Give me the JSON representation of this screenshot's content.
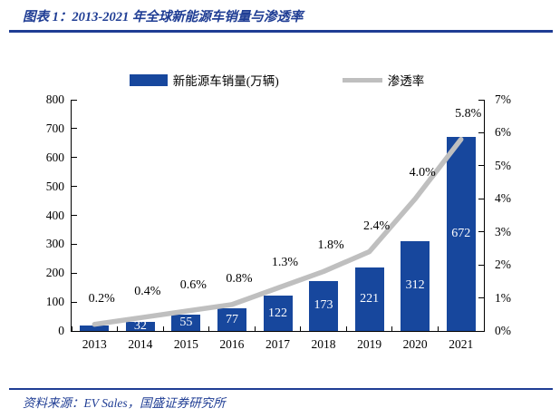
{
  "header": {
    "title": "图表 1：2013-2021 年全球新能源车销量与渗透率"
  },
  "footer": {
    "source": "资料来源：EV Sales，国盛证券研究所"
  },
  "colors": {
    "bar_blue": "#17479D",
    "line_gray": "#BFBFBF",
    "navy_accent": "#1F3D94",
    "axis_text": "#000000",
    "bar_value_text": "#FFFFFF"
  },
  "chart_data": {
    "type": "bar+line combo",
    "title": "2013-2021 年全球新能源车销量与渗透率",
    "categories": [
      "2013",
      "2014",
      "2015",
      "2016",
      "2017",
      "2018",
      "2019",
      "2020",
      "2021"
    ],
    "series": [
      {
        "name": "新能源车销量(万辆)",
        "type": "bar",
        "axis": "left",
        "values": [
          20,
          32,
          55,
          77,
          122,
          173,
          221,
          312,
          672
        ],
        "data_labels": [
          "",
          "32",
          "55",
          "77",
          "122",
          "173",
          "221",
          "312",
          "672"
        ]
      },
      {
        "name": "渗透率",
        "type": "line",
        "axis": "right",
        "values": [
          0.2,
          0.4,
          0.6,
          0.8,
          1.3,
          1.8,
          2.4,
          4.0,
          5.8
        ],
        "data_labels": [
          "0.2%",
          "0.4%",
          "0.6%",
          "0.8%",
          "1.3%",
          "1.8%",
          "2.4%",
          "4.0%",
          "5.8%"
        ]
      }
    ],
    "left_axis": {
      "min": 0,
      "max": 800,
      "step": 100,
      "tick_labels": [
        "0",
        "100",
        "200",
        "300",
        "400",
        "500",
        "600",
        "700",
        "800"
      ]
    },
    "right_axis": {
      "min": 0,
      "max": 7,
      "step": 1,
      "tick_labels": [
        "0%",
        "1%",
        "2%",
        "3%",
        "4%",
        "5%",
        "6%",
        "7%"
      ]
    },
    "grid": false,
    "legend_position": "top"
  }
}
